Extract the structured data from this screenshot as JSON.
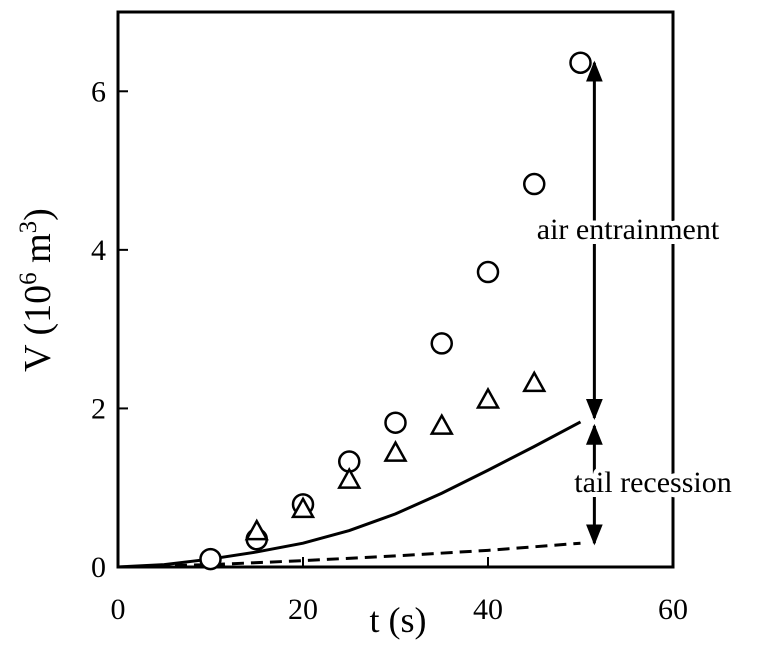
{
  "chart_data": {
    "type": "scatter",
    "xlabel": "t (s)",
    "ylabel_parts": [
      "V (10",
      "6",
      " m",
      "3",
      ")"
    ],
    "xlim": [
      0,
      60
    ],
    "xticks": [
      0,
      20,
      40,
      60
    ],
    "ylim": [
      0,
      7
    ],
    "yticks": [
      0,
      2,
      4,
      6
    ],
    "color": "#000000",
    "series": [
      {
        "marker": "circle",
        "x": [
          10,
          15,
          20,
          25,
          30,
          35,
          40,
          45,
          50
        ],
        "values": [
          0.1,
          0.35,
          0.79,
          1.33,
          1.82,
          2.82,
          3.72,
          4.83,
          6.36
        ]
      },
      {
        "marker": "triangle",
        "x": [
          15,
          20,
          25,
          30,
          35,
          40,
          45
        ],
        "values": [
          0.44,
          0.72,
          1.09,
          1.43,
          1.77,
          2.1,
          2.31
        ]
      },
      {
        "line": "solid",
        "x": [
          0,
          5,
          10,
          15,
          20,
          25,
          30,
          35,
          40,
          45,
          50
        ],
        "values": [
          0,
          0.03,
          0.1,
          0.19,
          0.3,
          0.46,
          0.67,
          0.93,
          1.22,
          1.52,
          1.83
        ]
      },
      {
        "line": "dashed",
        "x": [
          0,
          10,
          20,
          30,
          40,
          50
        ],
        "values": [
          0,
          0.03,
          0.08,
          0.14,
          0.21,
          0.3
        ]
      }
    ],
    "annotations": [
      "air entrainment",
      "tail recession"
    ]
  }
}
